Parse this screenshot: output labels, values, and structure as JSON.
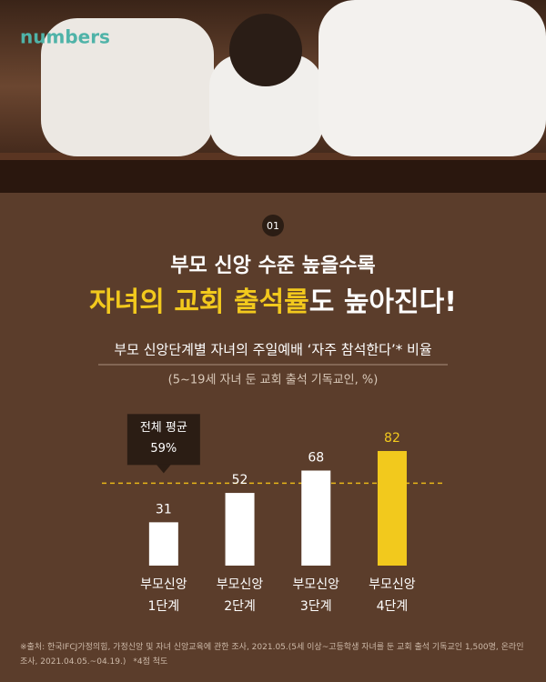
{
  "brand": "numbers",
  "chart_data": {
    "type": "bar",
    "badge": "01",
    "headline": "부모 신앙 수준 높을수록",
    "title_highlight": "자녀의 교회 출석률",
    "title_rest": "도 높아진다!",
    "subtitle": "부모 신앙단계별 자녀의 주일예배 ‘자주 참석한다’* 비율",
    "caption": "(5~19세 자녀 둔 교회 출석 기독교인, %)",
    "categories": [
      "부모신앙\n1단계",
      "부모신앙\n2단계",
      "부모신앙\n3단계",
      "부모신앙\n4단계"
    ],
    "values": [
      31,
      52,
      68,
      82
    ],
    "colors": [
      "#ffffff",
      "#ffffff",
      "#ffffff",
      "#f2c91d"
    ],
    "ylim": [
      0,
      100
    ],
    "average": {
      "label": "전체 평균",
      "value": 59,
      "value_label": "59%",
      "color": "#e7b619"
    }
  },
  "footnote": {
    "source": "※출처: 한국IFCJ가정의힘, 가정신앙 및 자녀 신앙교육에 관한 조사, 2021.05.(5세 이상~고등학생 자녀를 둔 교회 출석 기독교인 1,500명, 온라인 조사, 2021.04.05.~04.19.)",
    "note": "*4점 척도"
  }
}
